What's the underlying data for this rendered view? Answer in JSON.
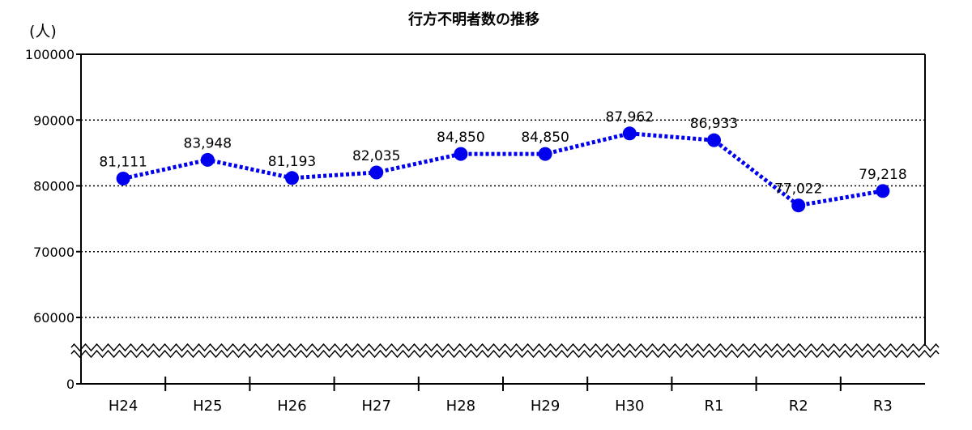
{
  "chart_data": {
    "type": "line",
    "title": "行方不明者数の推移",
    "unit_label": "(人)",
    "categories": [
      "H24",
      "H25",
      "H26",
      "H27",
      "H28",
      "H29",
      "H30",
      "R1",
      "R2",
      "R3"
    ],
    "series": [
      {
        "values": [
          81111,
          83948,
          81193,
          82035,
          84850,
          84850,
          87962,
          86933,
          77022,
          79218
        ],
        "data_labels": [
          "81,111",
          "83,948",
          "81,193",
          "82,035",
          "84,850",
          "84,850",
          "87,962",
          "86,933",
          "77,022",
          "79,218"
        ]
      }
    ],
    "y_ticks": [
      {
        "value": 100000,
        "label": "100000"
      },
      {
        "value": 90000,
        "label": "90000"
      },
      {
        "value": 80000,
        "label": "80000"
      },
      {
        "value": 70000,
        "label": "70000"
      },
      {
        "value": 60000,
        "label": "60000"
      },
      {
        "value": 0,
        "label": "0"
      }
    ],
    "ylim": [
      0,
      100000
    ],
    "axis_break": true,
    "grid": "horizontal-dotted",
    "colors": {
      "series": "#0000ee",
      "grid": "#000000"
    }
  }
}
